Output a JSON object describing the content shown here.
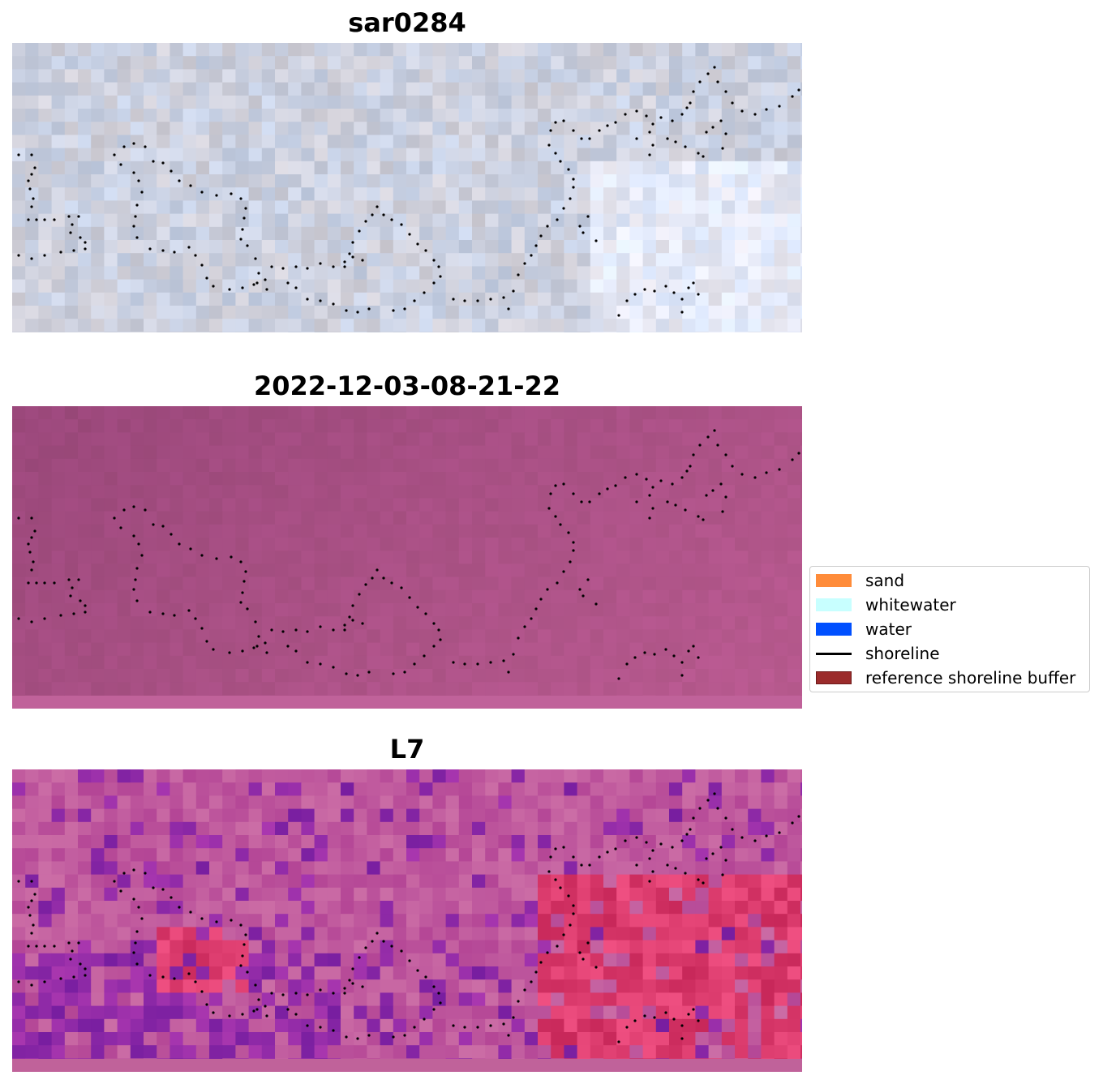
{
  "panels": [
    {
      "title": "sar0284",
      "palette": "gray"
    },
    {
      "title": "2022-12-03-08-21-22",
      "palette": "magenta"
    },
    {
      "title": "L7",
      "palette": "pink"
    }
  ],
  "legend": {
    "items": [
      {
        "label": "sand",
        "color": "#ff8c3a",
        "kind": "patch"
      },
      {
        "label": "whitewater",
        "color": "#c8ffff",
        "kind": "patch"
      },
      {
        "label": "water",
        "color": "#0050ff",
        "kind": "patch"
      },
      {
        "label": "shoreline",
        "color": "#000000",
        "kind": "line"
      },
      {
        "label": "reference shoreline buffer",
        "color": "#9b2b2b",
        "kind": "patch"
      }
    ]
  }
}
